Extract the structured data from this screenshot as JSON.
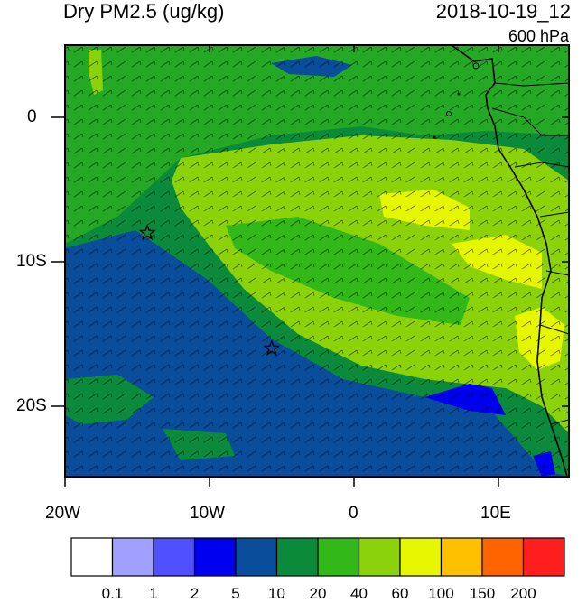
{
  "header": {
    "variable": "Dry PM2.5 (ug/kg)",
    "datetime": "2018-10-19_12",
    "level": "600 hPa"
  },
  "axes": {
    "lat_labels": [
      "0",
      "10S",
      "20S"
    ],
    "lon_labels": [
      "20W",
      "10W",
      "0",
      "10E"
    ]
  },
  "legend": {
    "labels": [
      "0.1",
      "1",
      "2",
      "5",
      "10",
      "20",
      "40",
      "60",
      "100",
      "150",
      "200"
    ],
    "colors": [
      "#ffffff",
      "#a0a0ff",
      "#5050ff",
      "#0000f0",
      "#0a4d9a",
      "#0a8a3a",
      "#33b81a",
      "#8cd20a",
      "#e6f500",
      "#ffc000",
      "#ff6400",
      "#ff1e1e"
    ]
  },
  "markers": [
    {
      "name": "site-star-1",
      "lon": -14.3,
      "lat": -8.0
    },
    {
      "name": "site-star-2",
      "lon": -5.7,
      "lat": -16.0
    }
  ]
}
